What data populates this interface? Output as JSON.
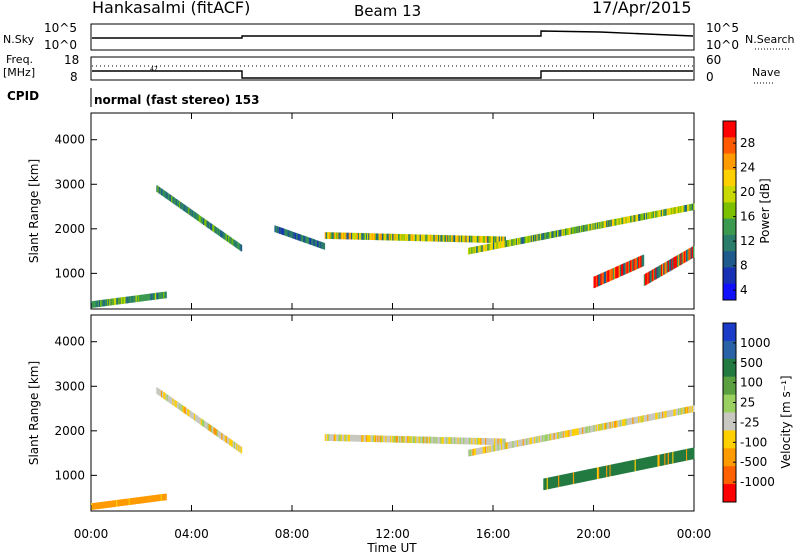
{
  "header": {
    "station": "Hankasalmi (fitACF)",
    "beam": "Beam 13",
    "date": "17/Apr/2015"
  },
  "top_panels": {
    "nsky_label": "N.Sky",
    "nsky_ticks": [
      "10^5",
      "10^0"
    ],
    "nsearch_label": "N.Search",
    "nsearch_ticks": [
      "10^5",
      "10^0"
    ],
    "freq_label_line1": "Freq.",
    "freq_label_line2": "[MHz]",
    "freq_ticks": [
      "18",
      "8"
    ],
    "nave_label": "Nave",
    "nave_ticks": [
      "60",
      "0"
    ],
    "cpid_label": "CPID",
    "cpid_text": "normal (fast stereo) 153",
    "freq_annotation": "47"
  },
  "chart_data": [
    {
      "type": "heatmap",
      "title": "",
      "xlabel": "Time UT",
      "ylabel": "Slant Range [km]",
      "x_ticks": [
        "00:00",
        "04:00",
        "08:00",
        "12:00",
        "16:00",
        "20:00",
        "00:00"
      ],
      "y_ticks": [
        "1000",
        "2000",
        "3000",
        "4000"
      ],
      "ylim": [
        200,
        4600
      ],
      "colorbar": {
        "label": "Power [dB]",
        "ticks": [
          "28",
          "24",
          "20",
          "16",
          "12",
          "8",
          "4"
        ],
        "colors": [
          "#ff0000",
          "#ff5a00",
          "#ff9a00",
          "#ffd000",
          "#c8d800",
          "#7cc000",
          "#3c9a50",
          "#2a7d6a",
          "#1e5a8c",
          "#1830b4",
          "#1010ff"
        ]
      },
      "scatter_regions": [
        {
          "name": "near-range 00-03",
          "t_start": 0.0,
          "t_end": 3.0,
          "r_start": 300,
          "r_end": 520,
          "power": 14
        },
        {
          "name": "arc 02:30-06",
          "t_start": 2.6,
          "t_end": 6.0,
          "r_start": 2900,
          "r_end": 1550,
          "power": 12
        },
        {
          "name": "arc 07-09",
          "t_start": 7.3,
          "t_end": 9.3,
          "r_start": 2000,
          "r_end": 1600,
          "power": 10
        },
        {
          "name": "band 09-16",
          "t_start": 9.3,
          "t_end": 16.5,
          "r_start": 1850,
          "r_end": 1750,
          "power": 20
        },
        {
          "name": "rising band 15-24",
          "t_start": 15.0,
          "t_end": 24.0,
          "r_start": 1500,
          "r_end": 2500,
          "power": 18
        },
        {
          "name": "strong 20-22",
          "t_start": 20.0,
          "t_end": 22.0,
          "r_start": 800,
          "r_end": 1300,
          "power": 28
        },
        {
          "name": "strong 22-24",
          "t_start": 22.0,
          "t_end": 24.0,
          "r_start": 850,
          "r_end": 1500,
          "power": 28
        }
      ]
    },
    {
      "type": "heatmap",
      "title": "",
      "xlabel": "Time UT",
      "ylabel": "Slant Range [km]",
      "x_ticks": [
        "00:00",
        "04:00",
        "08:00",
        "12:00",
        "16:00",
        "20:00",
        "00:00"
      ],
      "y_ticks": [
        "1000",
        "2000",
        "3000",
        "4000"
      ],
      "ylim": [
        200,
        4600
      ],
      "colorbar": {
        "label": "Velocity [m s⁻¹]",
        "ticks": [
          "1000",
          "500",
          "100",
          "25",
          "-25",
          "-100",
          "-500",
          "-1000"
        ],
        "colors": [
          "#1a3cc8",
          "#2a62a8",
          "#237a40",
          "#5aa040",
          "#9ad060",
          "#c8c8c0",
          "#ffd000",
          "#ff9a00",
          "#ff6000",
          "#ff0000"
        ]
      },
      "scatter_regions": [
        {
          "name": "near-range 00-03",
          "t_start": 0.0,
          "t_end": 3.0,
          "r_start": 300,
          "r_end": 520,
          "velocity": -200
        },
        {
          "name": "arc 02:30-06",
          "t_start": 2.6,
          "t_end": 6.0,
          "r_start": 2900,
          "r_end": 1550,
          "velocity": 0
        },
        {
          "name": "band 09-16",
          "t_start": 9.3,
          "t_end": 16.5,
          "r_start": 1850,
          "r_end": 1750,
          "velocity": 0
        },
        {
          "name": "rising band 15-24",
          "t_start": 15.0,
          "t_end": 24.0,
          "r_start": 1500,
          "r_end": 2500,
          "velocity": 0
        },
        {
          "name": "region 18-24",
          "t_start": 18.0,
          "t_end": 24.0,
          "r_start": 800,
          "r_end": 1500,
          "velocity": 150
        }
      ]
    }
  ]
}
